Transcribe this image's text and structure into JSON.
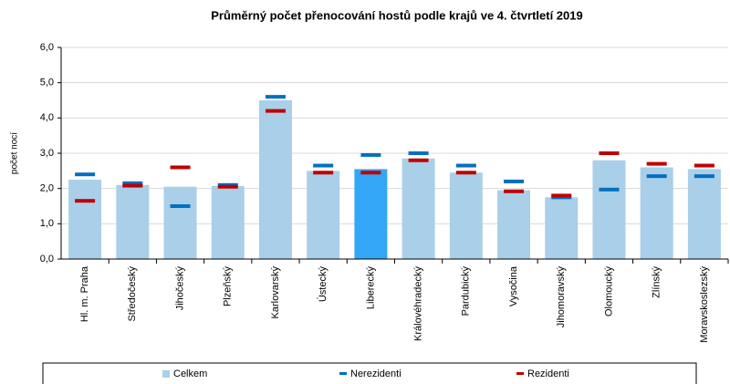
{
  "chart_data": {
    "type": "bar",
    "title": "Průměrný počet přenocování hostů podle krajů ve 4. čtvrtletí 2019",
    "y_label": "počet nocí",
    "categories": [
      "Hl. m. Praha",
      "Středočeský",
      "Jihočeský",
      "Plzeňský",
      "Karlovarský",
      "Ústecký",
      "Liberecký",
      "Královéhradecký",
      "Pardubický",
      "Vysočina",
      "Jihomoravský",
      "Olomoucký",
      "Zlínský",
      "Moravskoslezský"
    ],
    "series": [
      {
        "name": "Celkem",
        "color": "#a9cfe9",
        "highlight_color": "#33a6f7",
        "highlight": 6,
        "values": [
          2.25,
          2.1,
          2.05,
          2.07,
          4.5,
          2.5,
          2.55,
          2.85,
          2.45,
          1.95,
          1.75,
          2.8,
          2.6,
          2.55
        ]
      },
      {
        "name": "Nerezidenti",
        "color": "#0070c0",
        "values": [
          2.4,
          2.15,
          1.5,
          2.1,
          4.6,
          2.65,
          2.95,
          3.0,
          2.65,
          2.2,
          1.75,
          1.97,
          2.35,
          2.35
        ]
      },
      {
        "name": "Rezidenti",
        "color": "#c00000",
        "values": [
          1.65,
          2.08,
          2.6,
          2.05,
          4.2,
          2.45,
          2.45,
          2.8,
          2.45,
          1.92,
          1.8,
          3.0,
          2.7,
          2.65
        ]
      }
    ],
    "ylim": [
      0,
      6
    ],
    "yticks": [
      {
        "value": 0,
        "label": "0,0"
      },
      {
        "value": 1,
        "label": "1,0"
      },
      {
        "value": 2,
        "label": "2,0"
      },
      {
        "value": 3,
        "label": "3,0"
      },
      {
        "value": 4,
        "label": "4,0"
      },
      {
        "value": 5,
        "label": "5,0"
      },
      {
        "value": 6,
        "label": "6,0"
      }
    ],
    "grid": true
  }
}
